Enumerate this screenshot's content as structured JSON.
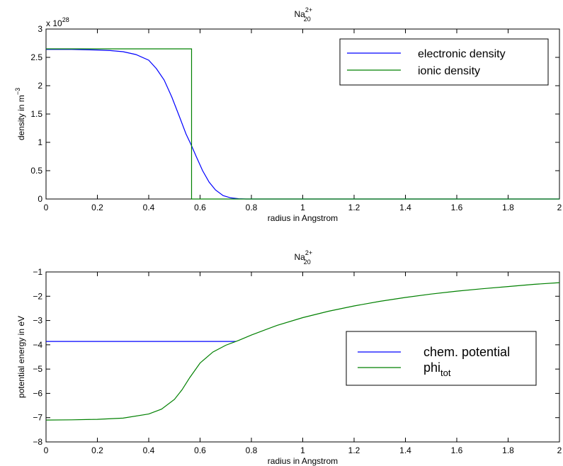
{
  "chart_data": [
    {
      "type": "line",
      "title": {
        "base": "Na",
        "sub": "20",
        "sup": "2+"
      },
      "xlabel": "radius in Angstrom",
      "ylabel": {
        "base": "density in m",
        "sup": "−3"
      },
      "exponent_label": {
        "base": "x 10",
        "sup": "28"
      },
      "xlim": [
        0,
        2
      ],
      "ylim": [
        0,
        3
      ],
      "grid": false,
      "legend_position": "top-right",
      "xticks": [
        "0",
        "0.2",
        "0.4",
        "0.6",
        "0.8",
        "1",
        "1.2",
        "1.4",
        "1.6",
        "1.8",
        "2"
      ],
      "yticks": [
        "0",
        "0.5",
        "1",
        "1.5",
        "2",
        "2.5",
        "3"
      ],
      "series": [
        {
          "name": "electronic density",
          "color": "#0000ff",
          "x": [
            0,
            0.1,
            0.2,
            0.25,
            0.3,
            0.35,
            0.4,
            0.43,
            0.46,
            0.49,
            0.52,
            0.545,
            0.565,
            0.585,
            0.61,
            0.635,
            0.66,
            0.69,
            0.72,
            0.75,
            0.78,
            0.8,
            2
          ],
          "y": [
            2.64,
            2.64,
            2.63,
            2.62,
            2.6,
            2.55,
            2.45,
            2.3,
            2.1,
            1.8,
            1.45,
            1.15,
            0.96,
            0.75,
            0.5,
            0.3,
            0.16,
            0.06,
            0.02,
            0.005,
            0.0,
            0.0,
            0.0
          ]
        },
        {
          "name": "ionic density",
          "color": "#008000",
          "x": [
            0,
            0.567,
            0.567,
            2
          ],
          "y": [
            2.65,
            2.65,
            0,
            0
          ]
        }
      ]
    },
    {
      "type": "line",
      "title": {
        "base": "Na",
        "sub": "20",
        "sup": "2+"
      },
      "xlabel": "radius in Angstrom",
      "ylabel": "potential energy in eV",
      "xlim": [
        0,
        2
      ],
      "ylim": [
        -8,
        -1
      ],
      "grid": false,
      "legend_position": "lower-right",
      "xticks": [
        "0",
        "0.2",
        "0.4",
        "0.6",
        "0.8",
        "1",
        "1.2",
        "1.4",
        "1.6",
        "1.8",
        "2"
      ],
      "yticks": [
        "−8",
        "−7",
        "−6",
        "−5",
        "−4",
        "−3",
        "−2",
        "−1"
      ],
      "series": [
        {
          "name": "chem. potential",
          "color": "#0000ff",
          "x": [
            0,
            0.74
          ],
          "y": [
            -3.86,
            -3.86
          ]
        },
        {
          "name": {
            "base": "phi",
            "sub": "tot"
          },
          "color": "#008000",
          "x": [
            0,
            0.1,
            0.2,
            0.3,
            0.4,
            0.45,
            0.5,
            0.53,
            0.56,
            0.6,
            0.65,
            0.7,
            0.75,
            0.8,
            0.9,
            1.0,
            1.1,
            1.2,
            1.3,
            1.4,
            1.5,
            1.6,
            1.7,
            1.8,
            1.9,
            2.0
          ],
          "y": [
            -7.1,
            -7.09,
            -7.07,
            -7.02,
            -6.85,
            -6.65,
            -6.25,
            -5.85,
            -5.35,
            -4.75,
            -4.3,
            -4.02,
            -3.82,
            -3.6,
            -3.2,
            -2.88,
            -2.62,
            -2.4,
            -2.21,
            -2.05,
            -1.91,
            -1.79,
            -1.69,
            -1.6,
            -1.51,
            -1.44
          ]
        }
      ]
    }
  ]
}
